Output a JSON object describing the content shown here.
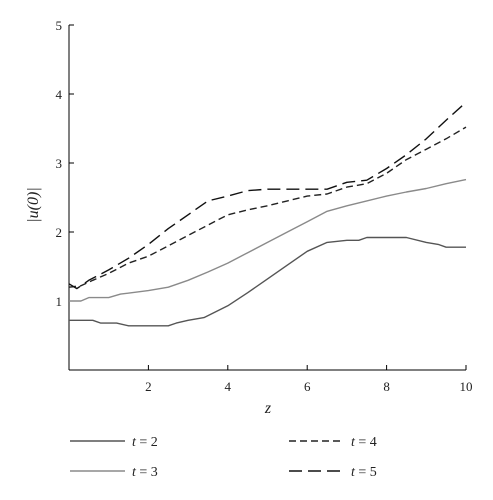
{
  "chart_data": {
    "type": "line",
    "title": "",
    "xlabel": "z",
    "ylabel": "|u(0)|",
    "xlim": [
      0,
      10
    ],
    "ylim": [
      0,
      5
    ],
    "xticks": [
      "2",
      "4",
      "6",
      "8",
      "10"
    ],
    "yticks": [
      "1",
      "2",
      "3",
      "4",
      "5"
    ],
    "grid": false,
    "legend_position": "bottom",
    "series": [
      {
        "name": "t = 2",
        "legend_var": "t",
        "legend_value": "2",
        "color": "#555555",
        "dash": "solid",
        "x": [
          0,
          0.6,
          0.8,
          1.2,
          1.5,
          2.0,
          2.5,
          2.7,
          3.0,
          3.4,
          4.0,
          4.5,
          5.0,
          5.5,
          6.0,
          6.5,
          7.0,
          7.3,
          7.5,
          8.0,
          8.5,
          9.0,
          9.3,
          9.5,
          10.0
        ],
        "y": [
          0.72,
          0.72,
          0.68,
          0.68,
          0.64,
          0.64,
          0.64,
          0.68,
          0.72,
          0.76,
          0.93,
          1.12,
          1.32,
          1.52,
          1.72,
          1.85,
          1.88,
          1.88,
          1.92,
          1.92,
          1.92,
          1.85,
          1.82,
          1.78,
          1.78
        ]
      },
      {
        "name": "t = 3",
        "legend_var": "t",
        "legend_value": "3",
        "color": "#8a8a8a",
        "dash": "solid",
        "x": [
          0,
          0.3,
          0.5,
          1.0,
          1.3,
          2.0,
          2.5,
          3.0,
          3.5,
          4.0,
          4.5,
          5.0,
          5.5,
          6.0,
          6.5,
          7.0,
          7.5,
          8.0,
          8.5,
          9.0,
          9.5,
          10.0
        ],
        "y": [
          1.0,
          1.0,
          1.05,
          1.05,
          1.1,
          1.15,
          1.2,
          1.3,
          1.42,
          1.55,
          1.7,
          1.85,
          2.0,
          2.15,
          2.3,
          2.38,
          2.45,
          2.52,
          2.58,
          2.63,
          2.7,
          2.76
        ]
      },
      {
        "name": "t = 4",
        "legend_var": "t",
        "legend_value": "4",
        "color": "#222222",
        "dash": "short",
        "x": [
          0,
          0.3,
          0.6,
          1.0,
          1.5,
          2.0,
          2.5,
          3.0,
          3.5,
          4.0,
          4.5,
          5.0,
          5.5,
          6.0,
          6.5,
          7.0,
          7.5,
          8.0,
          8.5,
          9.0,
          9.5,
          10.0
        ],
        "y": [
          1.2,
          1.22,
          1.3,
          1.4,
          1.55,
          1.65,
          1.8,
          1.95,
          2.1,
          2.25,
          2.32,
          2.38,
          2.45,
          2.52,
          2.55,
          2.65,
          2.7,
          2.85,
          3.05,
          3.2,
          3.35,
          3.52
        ]
      },
      {
        "name": "t = 5",
        "legend_var": "t",
        "legend_value": "5",
        "color": "#111111",
        "dash": "long",
        "x": [
          0,
          0.2,
          0.5,
          1.0,
          1.5,
          2.0,
          2.5,
          3.0,
          3.5,
          4.0,
          4.5,
          5.0,
          5.5,
          6.0,
          6.5,
          7.0,
          7.5,
          8.0,
          8.5,
          9.0,
          9.5,
          10.0
        ],
        "y": [
          1.25,
          1.18,
          1.3,
          1.45,
          1.62,
          1.82,
          2.05,
          2.25,
          2.45,
          2.52,
          2.6,
          2.62,
          2.62,
          2.62,
          2.62,
          2.72,
          2.75,
          2.92,
          3.12,
          3.35,
          3.62,
          3.88
        ]
      }
    ]
  }
}
